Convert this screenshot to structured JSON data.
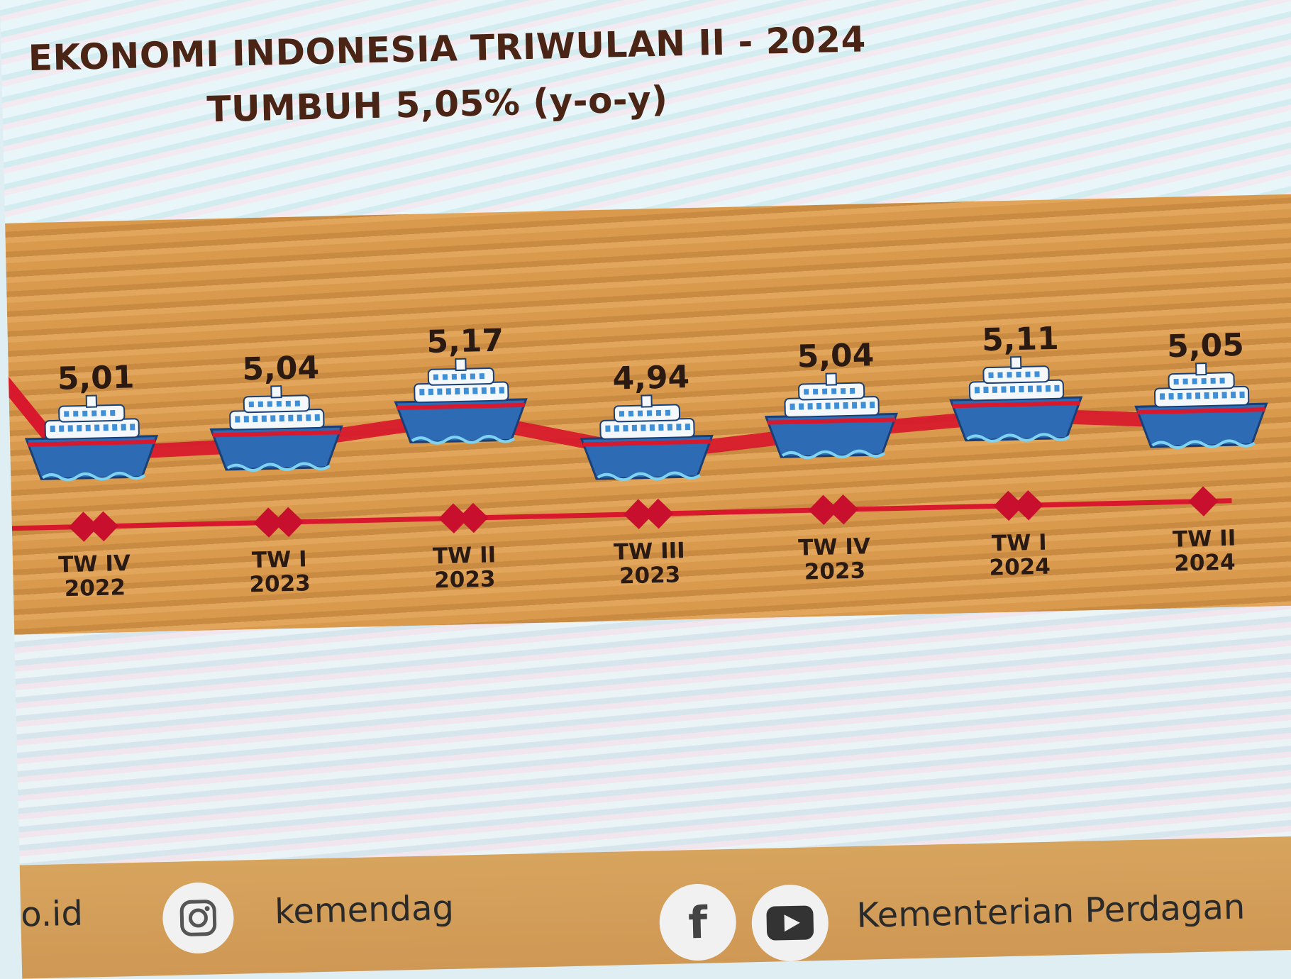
{
  "title_line1": "EKONOMI INDONESIA TRIWULAN II - 2024",
  "title_line2": "TUMBUH 5,05% (y-o-y)",
  "colors": {
    "line": "#d8182c",
    "title": "#4a2415",
    "band": "#d99a4d"
  },
  "chart_data": {
    "type": "line",
    "title": "EKONOMI INDONESIA TRIWULAN II - 2024",
    "subtitle": "TUMBUH 5,05% (y-o-y)",
    "categories": [
      [
        "TW IV",
        "2022"
      ],
      [
        "TW I",
        "2023"
      ],
      [
        "TW II",
        "2023"
      ],
      [
        "TW III",
        "2023"
      ],
      [
        "TW IV",
        "2023"
      ],
      [
        "TW I",
        "2024"
      ],
      [
        "TW II",
        "2024"
      ]
    ],
    "values": [
      5.01,
      5.04,
      5.17,
      4.94,
      5.04,
      5.11,
      5.05
    ],
    "value_labels": [
      "5,01",
      "5,04",
      "5,17",
      "4,94",
      "5,04",
      "5,11",
      "5,05"
    ],
    "xlabel": "",
    "ylabel": "",
    "marker": "ship-icon",
    "grid": false
  },
  "footer": {
    "website_fragment": "o.id",
    "instagram_handle": "kemendag",
    "youtube_channel": "Kementerian Perdagan",
    "icons": [
      "instagram-icon",
      "facebook-icon",
      "youtube-icon"
    ]
  }
}
